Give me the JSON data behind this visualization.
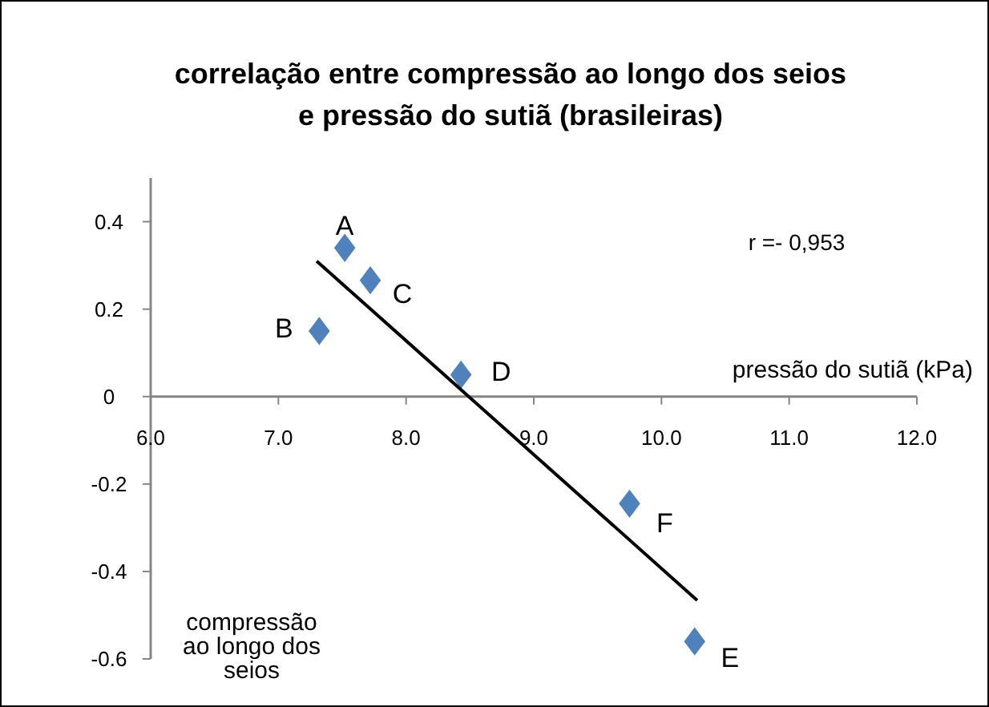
{
  "chart_data": {
    "type": "scatter",
    "title": "correlação entre compressão ao longo dos seios\ne pressão do sutiã (brasileiras)",
    "xlabel": "pressão do sutiã (kPa)",
    "ylabel": "compressão\nao longo dos\nseios",
    "series": [
      {
        "color": "#4f81bd",
        "marker": "diamond",
        "x": [
          7.52,
          7.32,
          7.72,
          8.43,
          10.26,
          9.75
        ],
        "values": [
          0.34,
          0.15,
          0.266,
          0.05,
          -0.56,
          -0.245
        ]
      },
      {
        "type": "line",
        "color": "#000000",
        "marker": "none",
        "x": [
          7.3,
          10.28
        ],
        "values": [
          0.31,
          -0.466
        ]
      }
    ],
    "annotations": [
      {
        "text": "A",
        "x": 7.52,
        "y": 0.34
      },
      {
        "text": "B",
        "x": 7.32,
        "y": 0.15
      },
      {
        "text": "C",
        "x": 7.72,
        "y": 0.266
      },
      {
        "text": "D",
        "x": 8.43,
        "y": 0.05
      },
      {
        "text": "E",
        "x": 10.26,
        "y": -0.56
      },
      {
        "text": "F",
        "x": 9.75,
        "y": -0.245
      },
      "r =- 0,953"
    ],
    "xlim": [
      6,
      12
    ],
    "ylim": [
      -0.6,
      0.5
    ],
    "xticks": [
      {
        "value": 6,
        "label": "6.0"
      },
      {
        "value": 7,
        "label": "7.0"
      },
      {
        "value": 8,
        "label": "8.0"
      },
      {
        "value": 9,
        "label": "9.0"
      },
      {
        "value": 10,
        "label": "10.0"
      },
      {
        "value": 11,
        "label": "11.0"
      },
      {
        "value": 12,
        "label": "12.0"
      }
    ],
    "yticks": [
      -0.6,
      -0.4,
      -0.2,
      0,
      0.2,
      0.4
    ],
    "grid": false
  }
}
